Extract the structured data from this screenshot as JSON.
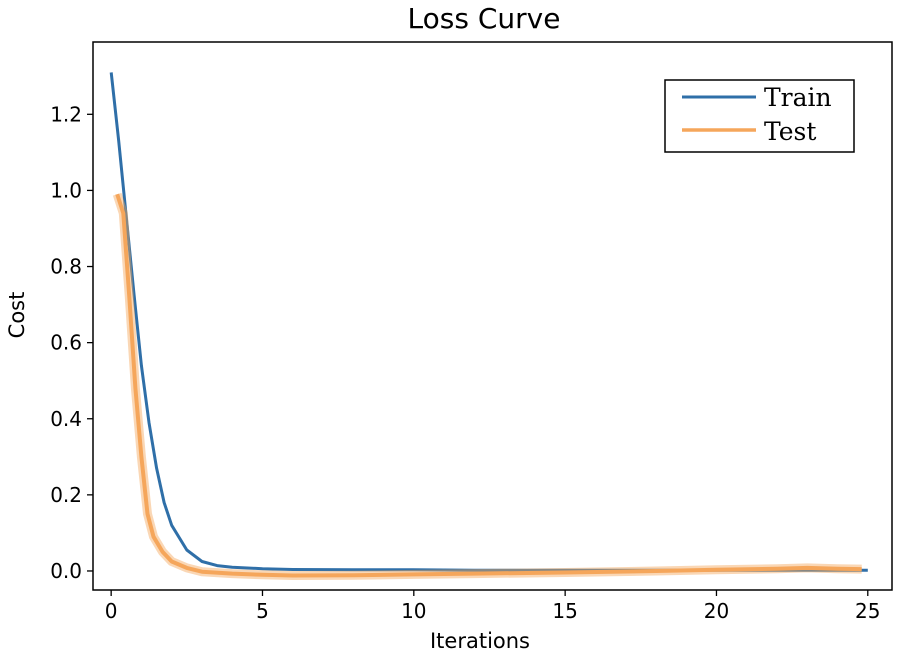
{
  "chart_data": {
    "type": "line",
    "title": "Loss Curve",
    "xlabel": "Iterations",
    "ylabel": "Cost",
    "xlim": [
      -0.6,
      25.8
    ],
    "ylim": [
      -0.05,
      1.39
    ],
    "xticks": [
      0,
      5,
      10,
      15,
      20,
      25
    ],
    "yticks": [
      0.0,
      0.2,
      0.4,
      0.6,
      0.8,
      1.0,
      1.2
    ],
    "xtick_labels": [
      "0",
      "5",
      "10",
      "15",
      "20",
      "25"
    ],
    "ytick_labels": [
      "0.0",
      "0.2",
      "0.4",
      "0.6",
      "0.8",
      "1.0",
      "1.2"
    ],
    "grid": false,
    "legend_position": "top-right",
    "series": [
      {
        "name": "Train",
        "color": "#2f6fa8",
        "x": [
          0,
          0.25,
          0.5,
          0.75,
          1.0,
          1.25,
          1.5,
          1.75,
          2.0,
          2.5,
          3.0,
          3.5,
          4,
          5,
          6,
          8,
          10,
          12,
          15,
          18,
          20,
          22,
          23,
          24,
          25
        ],
        "values": [
          1.31,
          1.13,
          0.93,
          0.73,
          0.54,
          0.39,
          0.27,
          0.18,
          0.12,
          0.055,
          0.025,
          0.014,
          0.01,
          0.006,
          0.004,
          0.003,
          0.003,
          0.002,
          0.002,
          0.002,
          0.002,
          0.002,
          0.002,
          0.002,
          0.002
        ]
      },
      {
        "name": "Test",
        "color": "#f5a65b",
        "x": [
          0.2,
          0.4,
          0.6,
          0.8,
          1.0,
          1.2,
          1.4,
          1.7,
          2.0,
          2.5,
          3.0,
          4,
          5,
          6,
          8,
          10,
          12,
          15,
          18,
          20,
          22,
          23,
          24,
          24.8
        ],
        "values": [
          0.99,
          0.94,
          0.72,
          0.48,
          0.3,
          0.15,
          0.09,
          0.05,
          0.025,
          0.008,
          -0.002,
          -0.007,
          -0.01,
          -0.012,
          -0.011,
          -0.009,
          -0.007,
          -0.004,
          0.0,
          0.003,
          0.006,
          0.008,
          0.006,
          0.005
        ]
      }
    ]
  }
}
